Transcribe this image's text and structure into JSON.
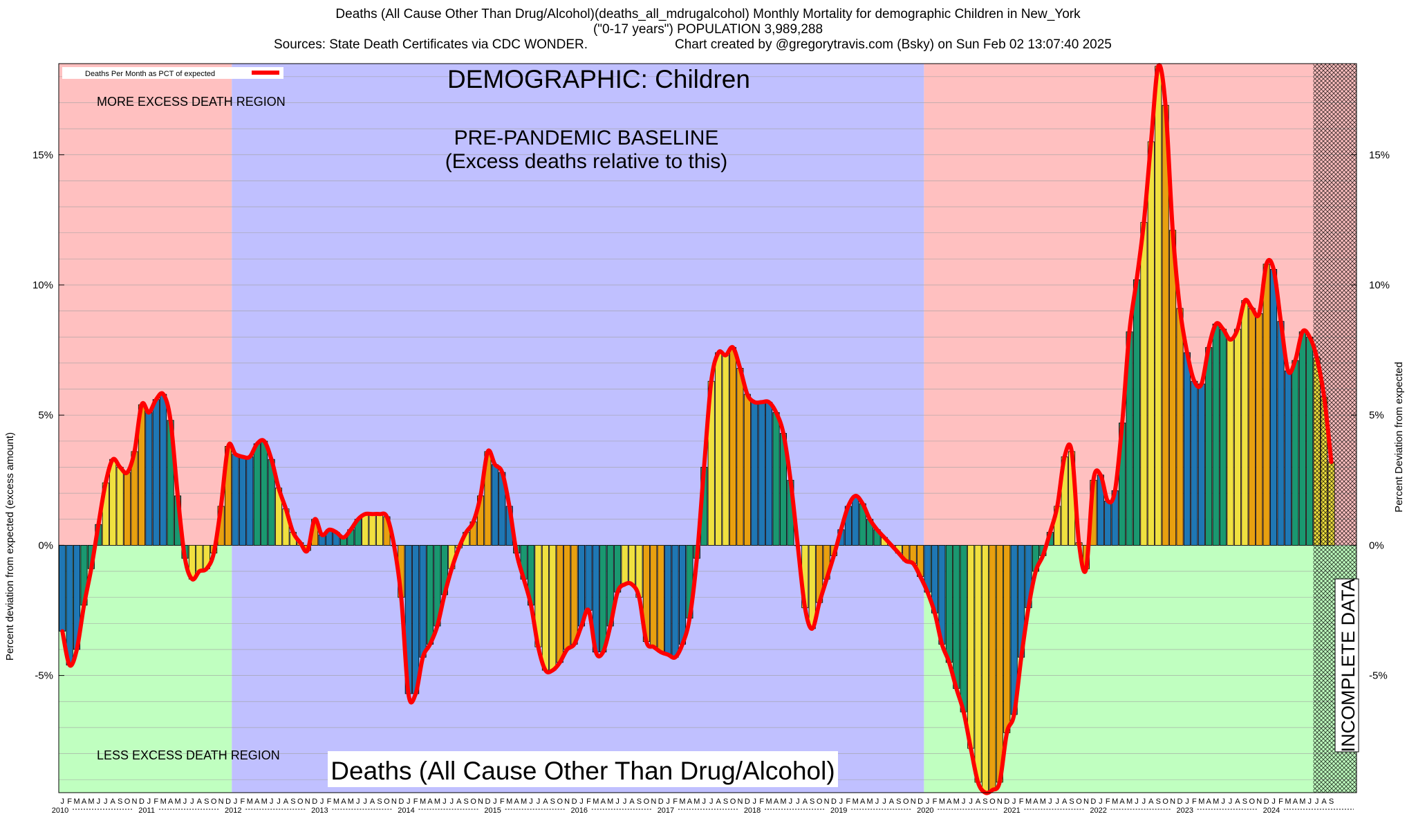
{
  "title": {
    "line1": "Deaths (All Cause Other Than Drug/Alcohol)(deaths_all_mdrugalcohol) Monthly Mortality for demographic Children in New_York",
    "line2": "(\"0-17 years\") POPULATION 3,989,288",
    "sources": "Sources: State Death Certificates via CDC WONDER.",
    "created": "Chart created by @gregorytravis.com (Bsky) on Sun Feb 02 13:07:40 2025"
  },
  "annotations": {
    "demographic": "DEMOGRAPHIC: Children",
    "baseline_line1": "PRE-PANDEMIC BASELINE",
    "baseline_line2": "(Excess deaths relative to this)",
    "more_region": "MORE EXCESS DEATH REGION",
    "less_region": "LESS EXCESS DEATH REGION",
    "bottom_label": "Deaths (All Cause Other Than Drug/Alcohol)",
    "incomplete": "INCOMPLETE DATA"
  },
  "chart_data": {
    "type": "bar",
    "legend": {
      "entry": "Deaths Per Month as PCT of expected",
      "placement": "top-left"
    },
    "ylabel_left": "Percent deviation from expected (excess amount)",
    "ylabel_right": "Percent Deviation from expected",
    "ylim": [
      -9.5,
      18.5
    ],
    "y_ticks": [
      -5,
      0,
      5,
      10,
      15
    ],
    "y_tick_labels": [
      "-5%",
      "0%",
      "5%",
      "10%",
      "15%"
    ],
    "grid": true,
    "start": "2010-01",
    "month_letters": [
      "J",
      "F",
      "M",
      "A",
      "M",
      "J",
      "J",
      "A",
      "S",
      "O",
      "N",
      "D"
    ],
    "years": [
      "2010",
      "2011",
      "2012",
      "2013",
      "2014",
      "2015",
      "2016",
      "2017",
      "2018",
      "2019",
      "2020",
      "2021",
      "2022",
      "2023",
      "2024"
    ],
    "baseline_period": [
      "2012-01",
      "2019-12"
    ],
    "incomplete_period": [
      "2024-07",
      "2024-10"
    ],
    "series": [
      {
        "type": "bar",
        "values": [
          -3.3,
          -4.6,
          -4.0,
          -2.3,
          -0.9,
          0.8,
          2.4,
          3.3,
          3.0,
          2.8,
          3.6,
          5.4,
          5.1,
          5.6,
          5.8,
          4.8,
          1.9,
          -0.5,
          -1.3,
          -1.0,
          -0.9,
          -0.3,
          1.5,
          3.8,
          3.5,
          3.4,
          3.4,
          3.9,
          4.0,
          3.3,
          2.2,
          1.4,
          0.5,
          0.1,
          -0.2,
          1.0,
          0.4,
          0.6,
          0.5,
          0.3,
          0.6,
          1.0,
          1.2,
          1.2,
          1.2,
          1.1,
          0.0,
          -2.0,
          -5.7,
          -5.7,
          -4.3,
          -3.8,
          -3.1,
          -1.9,
          -0.9,
          -0.1,
          0.5,
          0.9,
          1.9,
          3.6,
          3.1,
          2.8,
          1.5,
          -0.3,
          -1.3,
          -2.3,
          -3.9,
          -4.8,
          -4.8,
          -4.5,
          -4.0,
          -3.8,
          -3.1,
          -2.5,
          -4.1,
          -4.1,
          -3.1,
          -1.8,
          -1.5,
          -1.5,
          -2.0,
          -3.7,
          -3.9,
          -4.1,
          -4.2,
          -4.3,
          -3.8,
          -2.8,
          -0.5,
          3.0,
          6.3,
          7.4,
          7.3,
          7.6,
          6.8,
          5.8,
          5.5,
          5.5,
          5.5,
          5.1,
          4.3,
          2.5,
          0.0,
          -2.4,
          -3.2,
          -2.2,
          -1.3,
          -0.4,
          0.6,
          1.5,
          1.9,
          1.6,
          1.0,
          0.6,
          0.3,
          0.0,
          -0.3,
          -0.6,
          -0.7,
          -1.2,
          -1.8,
          -2.6,
          -3.8,
          -4.5,
          -5.5,
          -6.4,
          -7.8,
          -9.1,
          -9.5,
          -9.4,
          -9.1,
          -7.2,
          -6.5,
          -4.3,
          -2.4,
          -1.0,
          -0.4,
          0.5,
          1.5,
          3.4,
          3.6,
          0.1,
          -0.9,
          2.5,
          2.7,
          1.7,
          2.1,
          4.7,
          8.2,
          10.2,
          12.4,
          15.5,
          18.4,
          16.9,
          12.1,
          9.1,
          7.4,
          6.3,
          6.2,
          7.6,
          8.5,
          8.3,
          7.9,
          8.3,
          9.4,
          9.1,
          8.9,
          10.8,
          10.6,
          8.6,
          6.7,
          7.1,
          8.2,
          8.0,
          7.2,
          5.7,
          3.2
        ]
      }
    ]
  }
}
